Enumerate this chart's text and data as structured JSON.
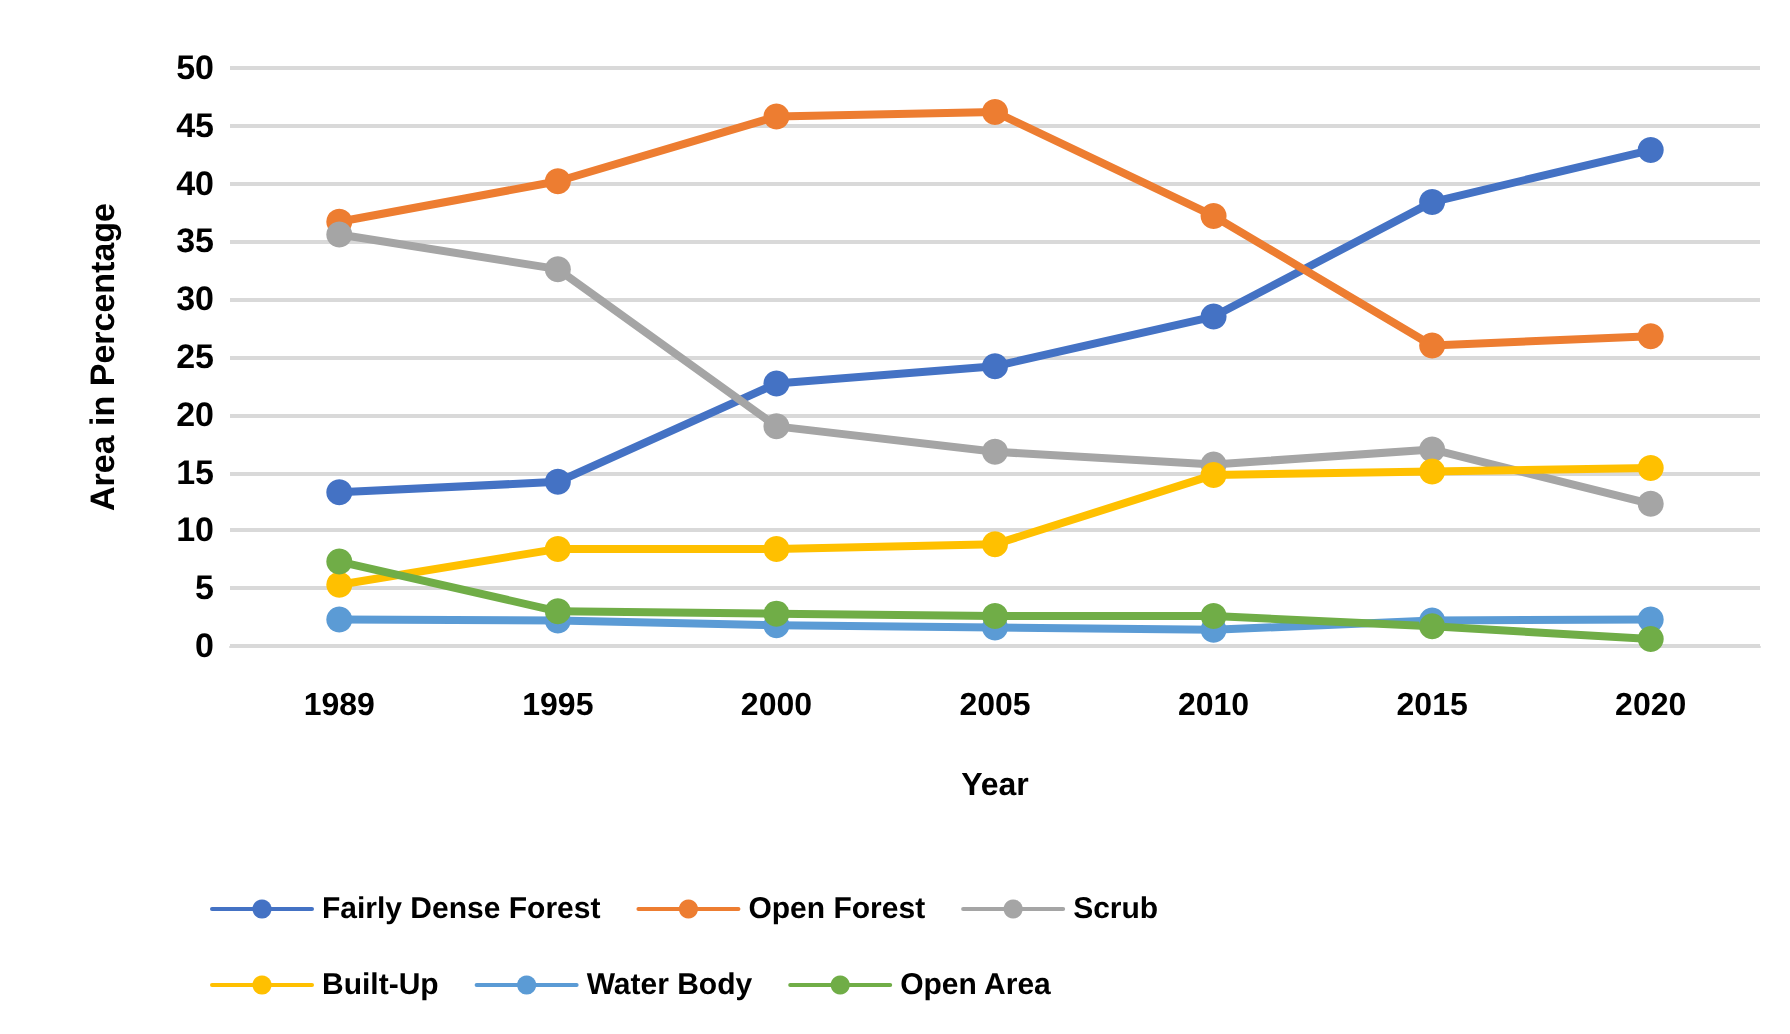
{
  "chart_data": {
    "type": "line",
    "xlabel": "Year",
    "ylabel": "Area in Percentage",
    "categories": [
      "1989",
      "1995",
      "2000",
      "2005",
      "2010",
      "2015",
      "2020"
    ],
    "series": [
      {
        "name": "Fairly Dense Forest",
        "color": "#4472c4",
        "values": [
          13.3,
          14.2,
          22.7,
          24.2,
          28.5,
          38.4,
          42.9
        ]
      },
      {
        "name": "Open Forest",
        "color": "#ed7d31",
        "values": [
          36.7,
          40.2,
          45.8,
          46.2,
          37.2,
          26.0,
          26.8
        ]
      },
      {
        "name": "Scrub",
        "color": "#a5a5a5",
        "values": [
          35.6,
          32.6,
          19.0,
          16.8,
          15.7,
          17.0,
          12.3
        ]
      },
      {
        "name": "Built-Up",
        "color": "#ffc000",
        "values": [
          5.3,
          8.4,
          8.4,
          8.8,
          14.8,
          15.1,
          15.4
        ]
      },
      {
        "name": "Water Body",
        "color": "#5b9bd5",
        "values": [
          2.3,
          2.2,
          1.8,
          1.6,
          1.4,
          2.2,
          2.3
        ]
      },
      {
        "name": "Open Area",
        "color": "#70ad47",
        "values": [
          7.3,
          3.0,
          2.8,
          2.6,
          2.6,
          1.7,
          0.6
        ]
      }
    ],
    "ylim": [
      0,
      50
    ],
    "yticks": [
      0,
      5,
      10,
      15,
      20,
      25,
      30,
      35,
      40,
      45,
      50
    ],
    "grid": "y",
    "legend": "bottom",
    "marker": "circle",
    "line_style": "solid"
  }
}
